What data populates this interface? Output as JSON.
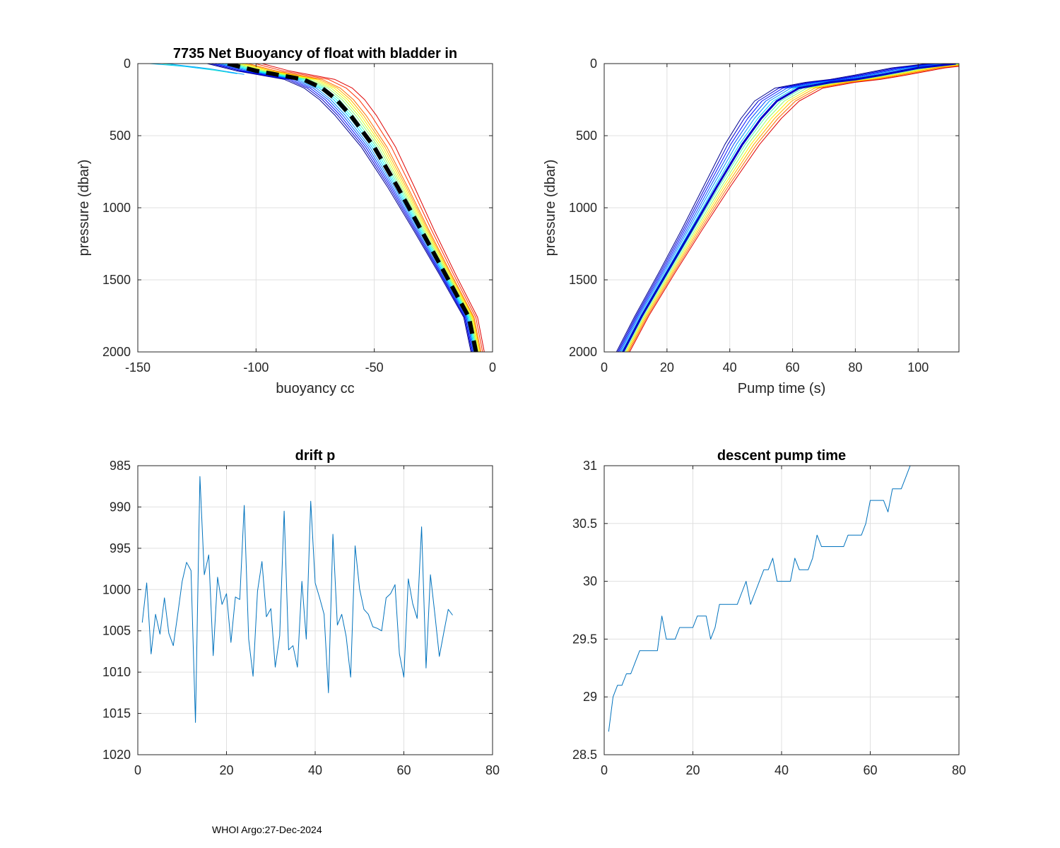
{
  "footer": "WHOI Argo:27-Dec-2024",
  "colors": {
    "line": "#0072BD",
    "grid": "#e0e0e0",
    "axis": "#262626",
    "mean": "#000000"
  },
  "chart_data": [
    {
      "id": "buoyancy",
      "type": "line",
      "title": "7735 Net Buoyancy of float with bladder in",
      "xlabel": "buoyancy cc",
      "ylabel": "pressure (dbar)",
      "xlim": [
        -150,
        0
      ],
      "ylim": [
        0,
        2000
      ],
      "y_reversed": true,
      "xticks": [
        -150,
        -100,
        -50,
        0
      ],
      "xtick_labels": [
        "-150",
        "-100",
        "-50",
        "0"
      ],
      "yticks": [
        0,
        500,
        1000,
        1500,
        2000
      ],
      "ytick_labels": [
        "0",
        "500",
        "1000",
        "1500",
        "2000"
      ],
      "mean_profile": {
        "x": [
          -112,
          -100,
          -90,
          -80,
          -72,
          -66,
          -60,
          -50,
          -40,
          -30,
          -20,
          -10,
          -7
        ],
        "y": [
          0,
          50,
          80,
          110,
          170,
          250,
          360,
          580,
          860,
          1160,
          1460,
          1760,
          2000
        ]
      },
      "profile_offsets": [
        -3,
        -2.5,
        -2,
        -1.5,
        -1,
        -0.5,
        0,
        0.5,
        1,
        1.5,
        2,
        2.5,
        3,
        4,
        5
      ],
      "profile_colors": [
        "#00008f",
        "#0000cf",
        "#0010ff",
        "#0050ff",
        "#0090ff",
        "#00d0ff",
        "#10ffef",
        "#50ffaf",
        "#90ff6f",
        "#d0ff2f",
        "#ffef00",
        "#ffaf00",
        "#ff6f00",
        "#ff3000",
        "#df0000"
      ],
      "surface_tails": [
        {
          "x": [
            -145,
            -130,
            -118,
            -108
          ],
          "y": [
            0,
            20,
            45,
            70
          ]
        },
        {
          "x": [
            -140,
            -125,
            -112
          ],
          "y": [
            0,
            25,
            60
          ]
        },
        {
          "x": [
            -138,
            -120,
            -105
          ],
          "y": [
            0,
            35,
            75
          ]
        }
      ]
    },
    {
      "id": "pump",
      "type": "line",
      "title": "",
      "xlabel": "Pump time (s)",
      "ylabel": "pressure (dbar)",
      "xlim": [
        0,
        113
      ],
      "ylim": [
        0,
        2000
      ],
      "y_reversed": true,
      "xticks": [
        0,
        20,
        40,
        60,
        80,
        100
      ],
      "xtick_labels": [
        "0",
        "20",
        "40",
        "60",
        "80",
        "100"
      ],
      "yticks": [
        0,
        500,
        1000,
        1500,
        2000
      ],
      "ytick_labels": [
        "0",
        "500",
        "1000",
        "1500",
        "2000"
      ],
      "mean_profile": {
        "x": [
          6,
          12,
          20,
          28,
          36,
          44,
          50,
          55,
          62,
          72,
          80,
          88,
          100,
          112
        ],
        "y": [
          2000,
          1750,
          1450,
          1150,
          850,
          560,
          380,
          260,
          170,
          130,
          110,
          80,
          30,
          0
        ]
      },
      "profile_offsets": [
        -3,
        -2.5,
        -2,
        -1.5,
        -1,
        -0.5,
        0,
        0.5,
        1,
        1.5,
        2,
        2.5,
        3
      ],
      "profile_colors": [
        "#00008f",
        "#0000cf",
        "#0010ff",
        "#0050ff",
        "#0090ff",
        "#00d0ff",
        "#10ffef",
        "#50ffaf",
        "#90ff6f",
        "#ffef00",
        "#ffaf00",
        "#ff6f00",
        "#df0000"
      ]
    },
    {
      "id": "drift",
      "type": "line",
      "title": "drift p",
      "xlabel": "",
      "ylabel": "",
      "xlim": [
        0,
        80
      ],
      "ylim": [
        985,
        1020
      ],
      "y_reversed": true,
      "xticks": [
        0,
        20,
        40,
        60,
        80
      ],
      "xtick_labels": [
        "0",
        "20",
        "40",
        "60",
        "80"
      ],
      "yticks": [
        985,
        990,
        995,
        1000,
        1005,
        1010,
        1015,
        1020
      ],
      "ytick_labels": [
        "985",
        "990",
        "995",
        "1000",
        "1005",
        "1010",
        "1015",
        "1020"
      ],
      "x": [
        1,
        2,
        3,
        4,
        5,
        6,
        7,
        8,
        9,
        10,
        11,
        12,
        13,
        14,
        15,
        16,
        17,
        18,
        19,
        20,
        21,
        22,
        23,
        24,
        25,
        26,
        27,
        28,
        29,
        30,
        31,
        32,
        33,
        34,
        35,
        36,
        37,
        38,
        39,
        40,
        41,
        42,
        43,
        44,
        45,
        46,
        47,
        48,
        49,
        50,
        51,
        52,
        53,
        54,
        55,
        56,
        57,
        58,
        59,
        60,
        61,
        62,
        63,
        64,
        65,
        66,
        67,
        68,
        69,
        70,
        71
      ],
      "y": [
        1004,
        999.2,
        1007.8,
        1003,
        1005.4,
        1001,
        1005.3,
        1006.8,
        1003,
        999,
        996.7,
        997.7,
        1016.1,
        986.3,
        998.2,
        995.8,
        1008,
        998.5,
        1001.8,
        1000.5,
        1006.4,
        1000.9,
        1001.2,
        989.8,
        1006,
        1010.5,
        1000.2,
        996.6,
        1003.3,
        1002.3,
        1009.4,
        1005.6,
        990.5,
        1007.3,
        1006.8,
        1009.4,
        999,
        1006,
        989.3,
        999.2,
        1001,
        1003,
        1012.5,
        993.3,
        1004.3,
        1003,
        1005.7,
        1010.6,
        994.7,
        999.9,
        1002.4,
        1003,
        1004.5,
        1004.7,
        1005,
        1001,
        1000.5,
        999.4,
        1007.8,
        1010.6,
        998.7,
        1001.7,
        1003.5,
        992.4,
        1009.5,
        998.2,
        1003,
        1008.1,
        1005.2,
        1002.4,
        1003.1
      ]
    },
    {
      "id": "descent",
      "type": "line",
      "title": "descent pump time",
      "xlabel": "",
      "ylabel": "",
      "xlim": [
        0,
        80
      ],
      "ylim": [
        28.5,
        31
      ],
      "y_reversed": false,
      "xticks": [
        0,
        20,
        40,
        60,
        80
      ],
      "xtick_labels": [
        "0",
        "20",
        "40",
        "60",
        "80"
      ],
      "yticks": [
        28.5,
        29,
        29.5,
        30,
        30.5,
        31
      ],
      "ytick_labels": [
        "28.5",
        "29",
        "29.5",
        "30",
        "30.5",
        "31"
      ],
      "x": [
        1,
        2,
        3,
        4,
        5,
        6,
        7,
        8,
        9,
        10,
        11,
        12,
        13,
        14,
        15,
        16,
        17,
        18,
        19,
        20,
        21,
        22,
        23,
        24,
        25,
        26,
        27,
        28,
        29,
        30,
        31,
        32,
        33,
        34,
        35,
        36,
        37,
        38,
        39,
        40,
        41,
        42,
        43,
        44,
        45,
        46,
        47,
        48,
        49,
        50,
        51,
        52,
        53,
        54,
        55,
        56,
        57,
        58,
        59,
        60,
        61,
        62,
        63,
        64,
        65,
        66,
        67,
        68,
        69,
        70,
        71
      ],
      "y": [
        28.7,
        29,
        29.1,
        29.1,
        29.2,
        29.2,
        29.3,
        29.4,
        29.4,
        29.4,
        29.4,
        29.4,
        29.7,
        29.5,
        29.5,
        29.5,
        29.6,
        29.6,
        29.6,
        29.6,
        29.7,
        29.7,
        29.7,
        29.5,
        29.6,
        29.8,
        29.8,
        29.8,
        29.8,
        29.8,
        29.9,
        30,
        29.8,
        29.9,
        30,
        30.1,
        30.1,
        30.2,
        30,
        30,
        30,
        30,
        30.2,
        30.1,
        30.1,
        30.1,
        30.2,
        30.4,
        30.3,
        30.3,
        30.3,
        30.3,
        30.3,
        30.3,
        30.4,
        30.4,
        30.4,
        30.4,
        30.5,
        30.7,
        30.7,
        30.7,
        30.7,
        30.6,
        30.8,
        30.8,
        30.8,
        30.9,
        31,
        31,
        31
      ]
    }
  ]
}
